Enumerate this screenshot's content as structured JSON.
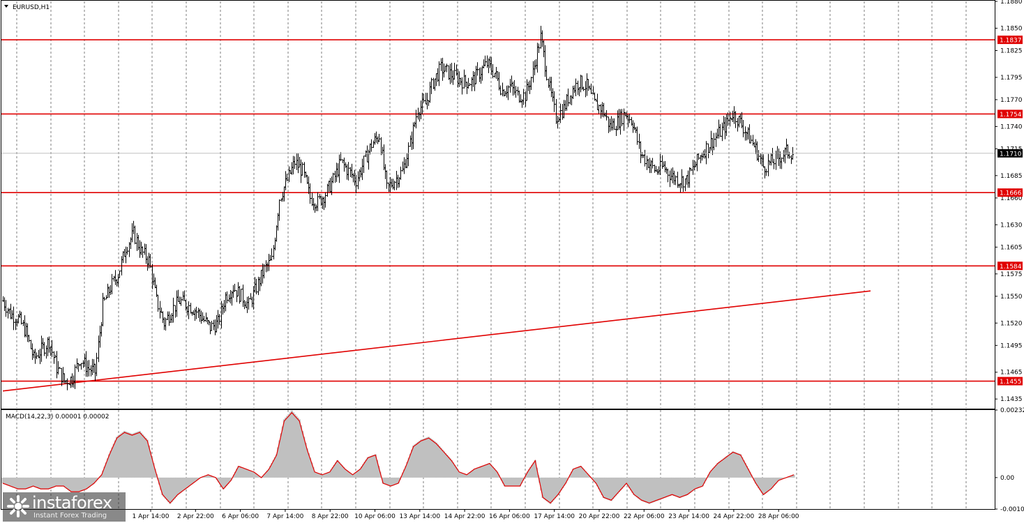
{
  "window": {
    "symbol_title": "EURUSD,H1",
    "indicator_title": "MACD(14,22,3) 0.00001 0.00002"
  },
  "colors": {
    "level_line": "#e00000",
    "trend_line": "#e00000",
    "candle": "#000000",
    "histogram": "#c0c0c0",
    "signal_line": "#e00000",
    "grid": "#000000",
    "price_label_bg": "#e00000",
    "current_price_bg": "#000000"
  },
  "chart_data": [
    {
      "type": "candlestick",
      "title": "EURUSD,H1",
      "symbol": "EURUSD",
      "timeframe": "H1",
      "ylim": [
        1.1425,
        1.188
      ],
      "y_ticks": [
        "1.1880",
        "1.1850",
        "1.1825",
        "1.1795",
        "1.1770",
        "1.1740",
        "1.1715",
        "1.1685",
        "1.1660",
        "1.1630",
        "1.1605",
        "1.1575",
        "1.1550",
        "1.1520",
        "1.1495",
        "1.1465",
        "1.1435"
      ],
      "x_ticks": [
        "1 Apr 14:00",
        "2 Apr 22:00",
        "6 Apr 06:00",
        "7 Apr 14:00",
        "8 Apr 22:00",
        "10 Apr 06:00",
        "13 Apr 14:00",
        "14 Apr 22:00",
        "16 Apr 06:00",
        "17 Apr 14:00",
        "20 Apr 22:00",
        "22 Apr 06:00",
        "23 Apr 14:00",
        "24 Apr 22:00",
        "28 Apr 06:00"
      ],
      "grid": "vertical dashed",
      "current_price": "1.1710",
      "levels": [
        {
          "label": "1.1837",
          "value": 1.1837
        },
        {
          "label": "1.1754",
          "value": 1.1754
        },
        {
          "label": "1.1666",
          "value": 1.1666
        },
        {
          "label": "1.1584",
          "value": 1.1584
        },
        {
          "label": "1.1455",
          "value": 1.1455
        }
      ],
      "trendline": {
        "from": 1.1444,
        "to": 1.1556
      },
      "close_path": [
        1.1545,
        1.153,
        1.1525,
        1.151,
        1.148,
        1.149,
        1.15,
        1.147,
        1.1455,
        1.1458,
        1.148,
        1.147,
        1.1465,
        1.154,
        1.156,
        1.1575,
        1.1605,
        1.162,
        1.16,
        1.159,
        1.1545,
        1.152,
        1.1535,
        1.1545,
        1.154,
        1.1535,
        1.1525,
        1.1515,
        1.152,
        1.155,
        1.156,
        1.155,
        1.154,
        1.156,
        1.158,
        1.159,
        1.166,
        1.168,
        1.17,
        1.169,
        1.166,
        1.1655,
        1.1665,
        1.168,
        1.17,
        1.169,
        1.168,
        1.17,
        1.172,
        1.173,
        1.167,
        1.168,
        1.169,
        1.172,
        1.176,
        1.1765,
        1.179,
        1.1805,
        1.18,
        1.1795,
        1.179,
        1.179,
        1.18,
        1.181,
        1.18,
        1.178,
        1.1785,
        1.1775,
        1.1775,
        1.18,
        1.184,
        1.179,
        1.175,
        1.176,
        1.178,
        1.179,
        1.1785,
        1.1765,
        1.176,
        1.174,
        1.1745,
        1.1755,
        1.1745,
        1.171,
        1.17,
        1.169,
        1.1695,
        1.1685,
        1.168,
        1.168,
        1.1695,
        1.171,
        1.172,
        1.173,
        1.174,
        1.1755,
        1.1745,
        1.173,
        1.1715,
        1.1695,
        1.17,
        1.1705,
        1.1712,
        1.171
      ],
      "macd": {
        "ylim": [
          -0.00108,
          0.00232
        ],
        "y_ticks": [
          "0.00232",
          "0.00",
          "-0.00108"
        ],
        "values": [
          -0.0002,
          -0.0003,
          -0.0004,
          -0.0004,
          -0.0003,
          -0.0004,
          -0.0004,
          -0.0003,
          -0.0003,
          -0.0005,
          -0.0005,
          -0.0004,
          -0.0002,
          0.0001,
          0.0008,
          0.0014,
          0.0016,
          0.0015,
          0.0016,
          0.0013,
          0.0003,
          -0.0006,
          -0.0009,
          -0.0006,
          -0.0004,
          -0.0002,
          0.0,
          0.0001,
          0.0,
          -0.0004,
          -0.0001,
          0.0004,
          0.0003,
          0.0002,
          0.0,
          0.0003,
          0.0008,
          0.002,
          0.0023,
          0.002,
          0.001,
          0.0002,
          0.0001,
          0.0002,
          0.0006,
          0.0003,
          0.0001,
          0.0003,
          0.0007,
          0.0008,
          -0.0002,
          -0.0003,
          -0.0002,
          0.0004,
          0.0011,
          0.0013,
          0.0014,
          0.0012,
          0.0009,
          0.0006,
          0.0002,
          0.0001,
          0.0003,
          0.0004,
          0.0005,
          0.0002,
          -0.0003,
          -0.0003,
          -0.0003,
          0.0002,
          0.0006,
          -0.0007,
          -0.0009,
          -0.0006,
          -0.0002,
          0.0003,
          0.0004,
          0.0001,
          -0.0002,
          -0.0007,
          -0.0008,
          -0.0005,
          -0.0002,
          -0.0006,
          -0.0008,
          -0.0009,
          -0.0008,
          -0.0007,
          -0.0006,
          -0.0007,
          -0.0006,
          -0.0004,
          -0.0003,
          0.0002,
          0.0005,
          0.0007,
          0.0009,
          0.0008,
          0.0003,
          -0.0002,
          -0.0006,
          -0.0004,
          -0.0001,
          0.0,
          0.0001
        ]
      }
    }
  ],
  "watermark": {
    "name": "instaforex",
    "tagline": "Instant Forex Trading"
  }
}
